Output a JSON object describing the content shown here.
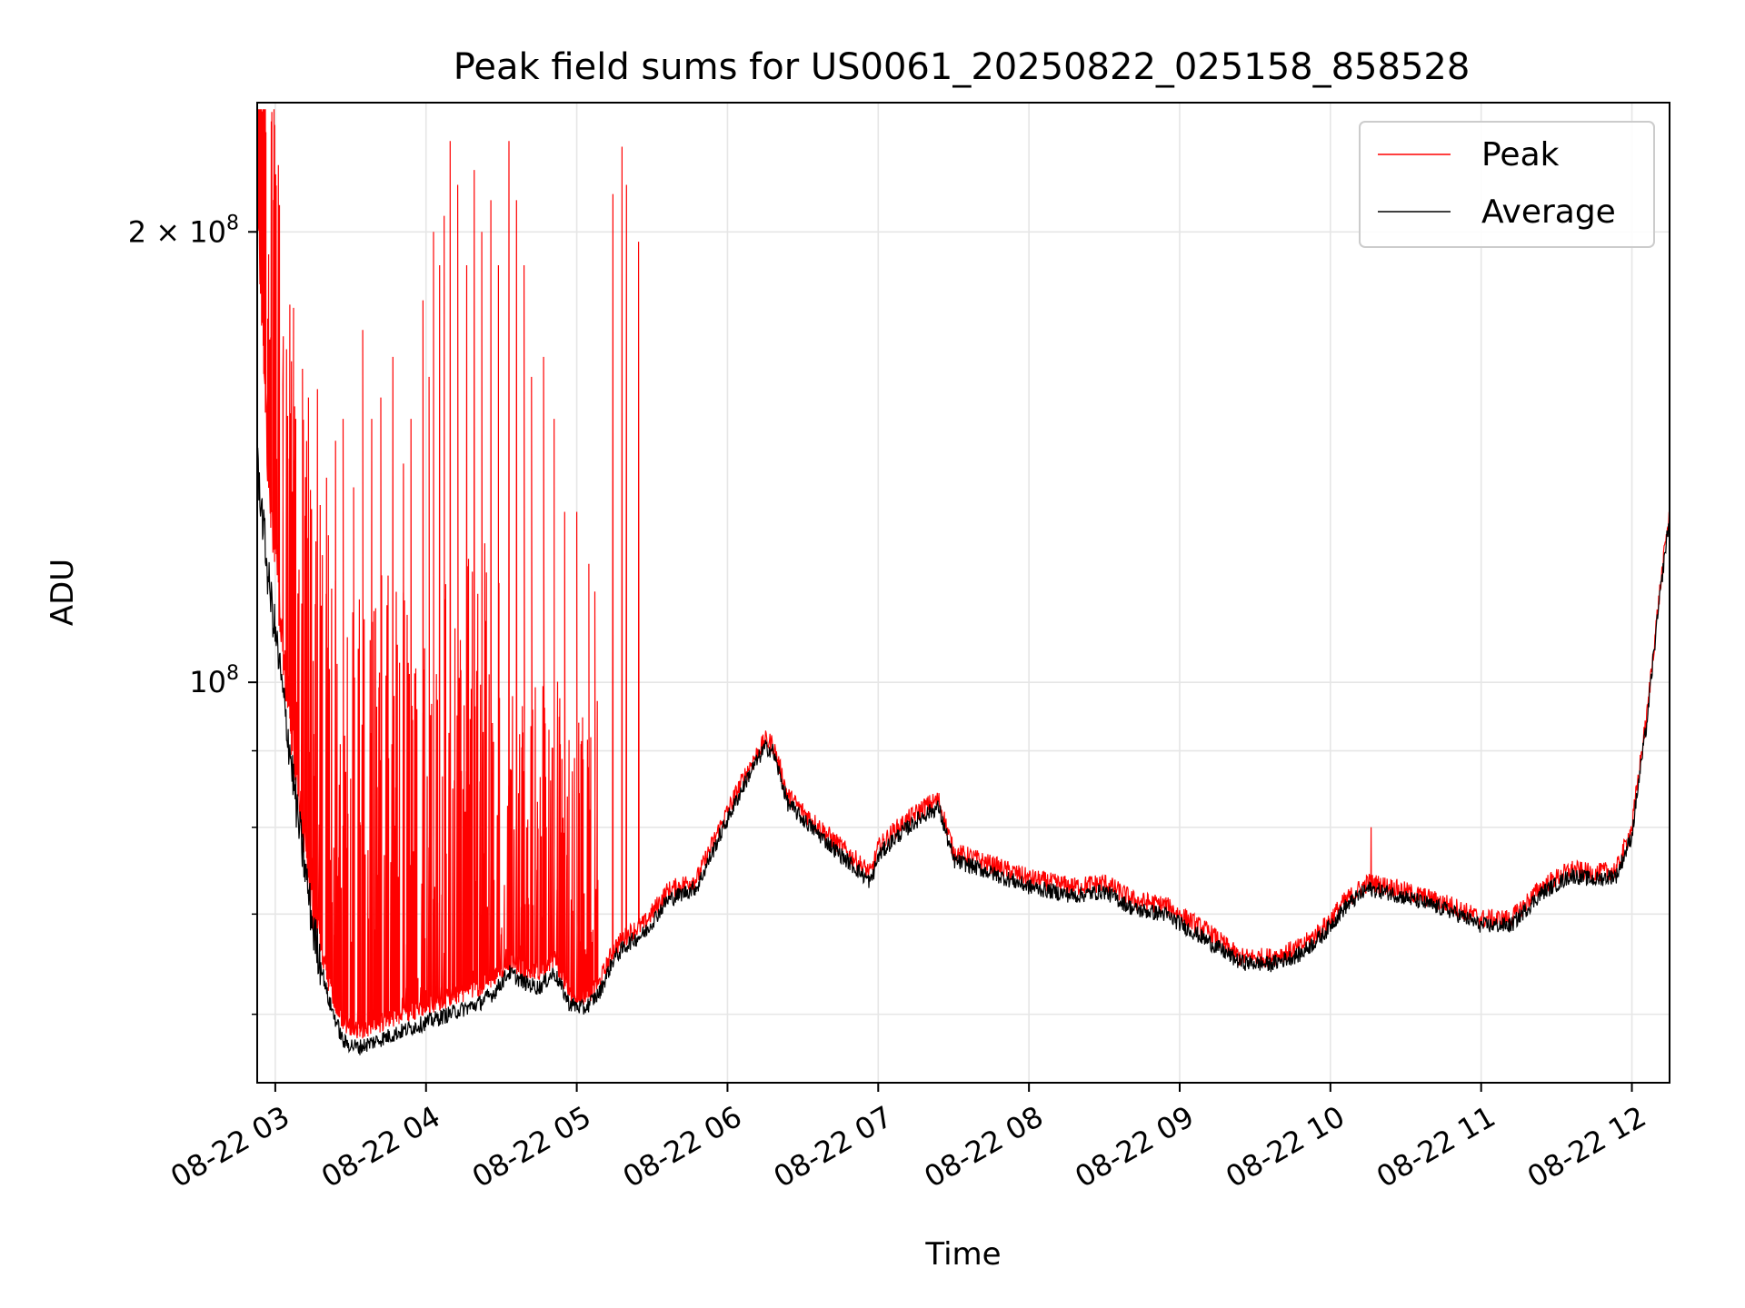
{
  "chart_data": {
    "type": "line",
    "title": "Peak field sums for US0061_20250822_025158_858528",
    "xlabel": "Time",
    "ylabel": "ADU",
    "x_unit": "hour of 2025-08-22",
    "xlim": [
      2.88,
      12.25
    ],
    "ylim": [
      54000000,
      244000000
    ],
    "yscale": "log",
    "grid": true,
    "legend_position": "top-right",
    "x_ticks": [
      {
        "value": 3,
        "label": "08-22 03"
      },
      {
        "value": 4,
        "label": "08-22 04"
      },
      {
        "value": 5,
        "label": "08-22 05"
      },
      {
        "value": 6,
        "label": "08-22 06"
      },
      {
        "value": 7,
        "label": "08-22 07"
      },
      {
        "value": 8,
        "label": "08-22 08"
      },
      {
        "value": 9,
        "label": "08-22 09"
      },
      {
        "value": 10,
        "label": "08-22 10"
      },
      {
        "value": 11,
        "label": "08-22 11"
      },
      {
        "value": 12,
        "label": "08-22 12"
      }
    ],
    "y_major_ticks": [
      {
        "value": 100000000,
        "base": "10",
        "exp": "8"
      },
      {
        "value": 200000000,
        "base": "2 × 10",
        "exp": "8"
      }
    ],
    "y_minor_ticks": [
      60000000,
      70000000,
      80000000,
      90000000
    ],
    "series": [
      {
        "name": "Peak",
        "color": "#ff0000",
        "x": [
          2.88,
          2.95,
          3.05,
          3.15,
          3.25,
          3.35,
          3.45,
          3.55,
          3.65,
          3.75,
          3.85,
          3.95,
          4.05,
          4.15,
          4.25,
          4.35,
          4.45,
          4.55,
          4.65,
          4.75,
          4.85,
          4.95,
          5.05,
          5.15,
          5.25,
          5.35,
          5.45,
          5.6,
          5.8,
          6.0,
          6.15,
          6.25,
          6.3,
          6.4,
          6.5,
          6.7,
          6.95,
          7.0,
          7.1,
          7.3,
          7.4,
          7.5,
          7.6,
          8.0,
          8.3,
          8.5,
          8.7,
          8.9,
          9.0,
          9.2,
          9.4,
          9.6,
          9.8,
          9.95,
          10.1,
          10.25,
          10.4,
          10.6,
          10.8,
          11.0,
          11.2,
          11.4,
          11.6,
          11.75,
          11.9,
          12.0,
          12.1,
          12.25
        ],
        "y": [
          207000000,
          140000000,
          104000000,
          84000000,
          70000000,
          63000000,
          59000000,
          58500000,
          59000000,
          59500000,
          60000000,
          60500000,
          61000000,
          61500000,
          62000000,
          62500000,
          63500000,
          65000000,
          64500000,
          64000000,
          65500000,
          62000000,
          61500000,
          63000000,
          66500000,
          68000000,
          69000000,
          72500000,
          74000000,
          82000000,
          88000000,
          91500000,
          91000000,
          84000000,
          82000000,
          78500000,
          74500000,
          77500000,
          79500000,
          82500000,
          83500000,
          77000000,
          76500000,
          74000000,
          73000000,
          73500000,
          71500000,
          71000000,
          70000000,
          68000000,
          65500000,
          65500000,
          66500000,
          68500000,
          71500000,
          73500000,
          73000000,
          72000000,
          71000000,
          69500000,
          69500000,
          73000000,
          75000000,
          74500000,
          75000000,
          80000000,
          95000000,
          130000000
        ],
        "spikes": [
          [
            2.9,
            200000000
          ],
          [
            2.95,
            175000000
          ],
          [
            3.05,
            158000000
          ],
          [
            3.12,
            148000000
          ],
          [
            3.18,
            162000000
          ],
          [
            3.22,
            155000000
          ],
          [
            3.28,
            157000000
          ],
          [
            3.34,
            137000000
          ],
          [
            3.4,
            145000000
          ],
          [
            3.45,
            150000000
          ],
          [
            3.52,
            135000000
          ],
          [
            3.58,
            172000000
          ],
          [
            3.64,
            150000000
          ],
          [
            3.7,
            155000000
          ],
          [
            3.78,
            165000000
          ],
          [
            3.85,
            140000000
          ],
          [
            3.9,
            150000000
          ],
          [
            3.98,
            180000000
          ],
          [
            4.02,
            160000000
          ],
          [
            4.05,
            200000000
          ],
          [
            4.09,
            190000000
          ],
          [
            4.12,
            205000000
          ],
          [
            4.16,
            230000000
          ],
          [
            4.21,
            215000000
          ],
          [
            4.27,
            190000000
          ],
          [
            4.32,
            220000000
          ],
          [
            4.37,
            200000000
          ],
          [
            4.43,
            210000000
          ],
          [
            4.48,
            190000000
          ],
          [
            4.55,
            230000000
          ],
          [
            4.6,
            210000000
          ],
          [
            4.65,
            190000000
          ],
          [
            4.7,
            160000000
          ],
          [
            4.78,
            165000000
          ],
          [
            4.85,
            150000000
          ],
          [
            4.92,
            130000000
          ],
          [
            5.0,
            130000000
          ],
          [
            5.08,
            120000000
          ],
          [
            5.12,
            115000000
          ],
          [
            5.24,
            212000000
          ],
          [
            5.3,
            228000000
          ],
          [
            5.33,
            215000000
          ],
          [
            5.41,
            197000000
          ],
          [
            10.27,
            80000000
          ]
        ]
      },
      {
        "name": "Average",
        "color": "#000000",
        "x": [
          2.88,
          2.95,
          3.05,
          3.15,
          3.25,
          3.35,
          3.45,
          3.55,
          3.65,
          3.75,
          3.85,
          3.95,
          4.05,
          4.15,
          4.25,
          4.35,
          4.45,
          4.55,
          4.65,
          4.75,
          4.85,
          4.95,
          5.05,
          5.15,
          5.25,
          5.35,
          5.45,
          5.6,
          5.8,
          6.0,
          6.15,
          6.25,
          6.3,
          6.4,
          6.5,
          6.7,
          6.95,
          7.0,
          7.1,
          7.3,
          7.4,
          7.5,
          7.6,
          8.0,
          8.3,
          8.5,
          8.7,
          8.9,
          9.0,
          9.2,
          9.4,
          9.6,
          9.8,
          9.95,
          10.1,
          10.25,
          10.4,
          10.6,
          10.8,
          11.0,
          11.2,
          11.4,
          11.6,
          11.75,
          11.9,
          12.0,
          12.1,
          12.25
        ],
        "y": [
          140000000,
          118000000,
          98000000,
          81000000,
          68500000,
          61500000,
          57500000,
          57000000,
          57500000,
          58000000,
          58500000,
          59000000,
          59500000,
          60000000,
          60500000,
          61000000,
          62000000,
          64000000,
          63000000,
          62500000,
          64000000,
          61000000,
          60500000,
          62000000,
          65500000,
          67000000,
          68000000,
          71500000,
          73000000,
          81000000,
          87000000,
          90500000,
          90000000,
          83000000,
          81000000,
          77500000,
          73500000,
          76500000,
          78500000,
          81500000,
          82500000,
          76000000,
          75500000,
          73000000,
          72000000,
          72500000,
          70500000,
          70000000,
          69000000,
          67000000,
          65000000,
          64800000,
          65800000,
          67800000,
          70800000,
          72800000,
          72300000,
          71300000,
          70300000,
          68800000,
          68800000,
          72300000,
          74300000,
          73800000,
          74300000,
          79000000,
          94000000,
          129000000
        ]
      }
    ]
  }
}
